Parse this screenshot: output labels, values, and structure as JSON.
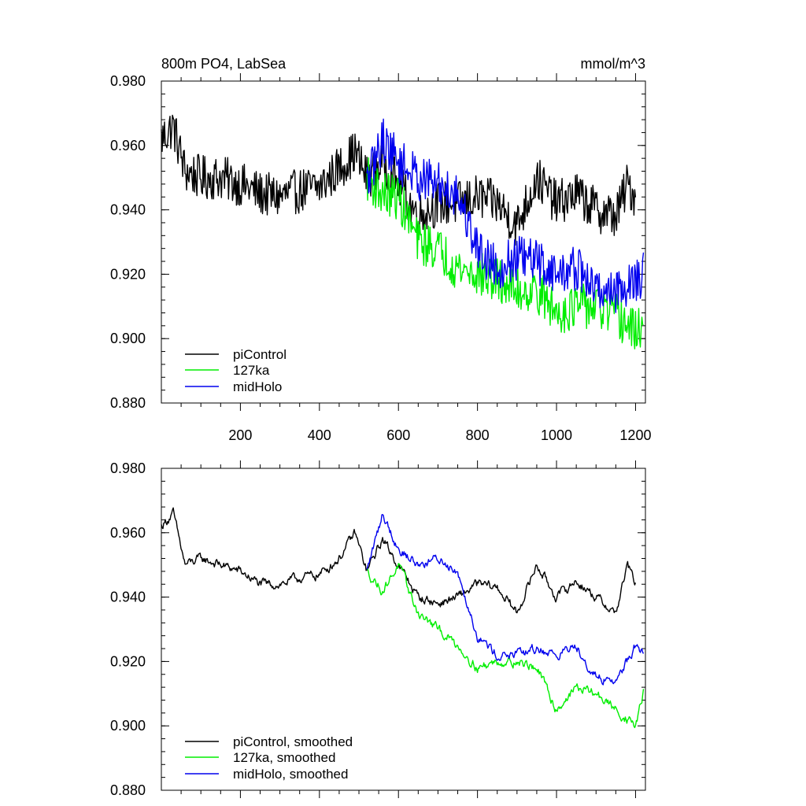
{
  "chart_data": [
    {
      "type": "line",
      "title": "800m PO4, LabSea",
      "units": "mmol/m^3",
      "xlim": [
        0,
        1225
      ],
      "ylim": [
        0.88,
        0.98
      ],
      "x_ticks": [
        200,
        400,
        600,
        800,
        1000,
        1200
      ],
      "x_tick_labels": [
        "200",
        "400",
        "600",
        "800",
        "1000",
        "1200"
      ],
      "y_ticks": [
        0.88,
        0.9,
        0.92,
        0.94,
        0.96,
        0.98
      ],
      "y_tick_labels": [
        "0.880",
        "0.900",
        "0.920",
        "0.940",
        "0.960",
        "0.980"
      ],
      "grid": false,
      "legend_position": "bottom-left",
      "noise": 0.007,
      "series": [
        {
          "name": "piControl",
          "color": "#000000",
          "x_range": [
            0,
            1200
          ],
          "anchors": [
            [
              0,
              0.962
            ],
            [
              30,
              0.966
            ],
            [
              60,
              0.952
            ],
            [
              100,
              0.95
            ],
            [
              150,
              0.95
            ],
            [
              200,
              0.948
            ],
            [
              250,
              0.945
            ],
            [
              300,
              0.944
            ],
            [
              350,
              0.946
            ],
            [
              400,
              0.947
            ],
            [
              450,
              0.953
            ],
            [
              490,
              0.958
            ],
            [
              520,
              0.95
            ],
            [
              560,
              0.955
            ],
            [
              600,
              0.948
            ],
            [
              650,
              0.938
            ],
            [
              700,
              0.942
            ],
            [
              750,
              0.942
            ],
            [
              800,
              0.944
            ],
            [
              850,
              0.942
            ],
            [
              900,
              0.935
            ],
            [
              950,
              0.95
            ],
            [
              1000,
              0.942
            ],
            [
              1050,
              0.945
            ],
            [
              1100,
              0.94
            ],
            [
              1150,
              0.938
            ],
            [
              1180,
              0.948
            ],
            [
              1200,
              0.944
            ]
          ]
        },
        {
          "name": "127ka",
          "color": "#00ee00",
          "x_range": [
            520,
            1220
          ],
          "anchors": [
            [
              520,
              0.95
            ],
            [
              560,
              0.945
            ],
            [
              600,
              0.944
            ],
            [
              650,
              0.93
            ],
            [
              700,
              0.928
            ],
            [
              750,
              0.922
            ],
            [
              800,
              0.92
            ],
            [
              850,
              0.918
            ],
            [
              900,
              0.915
            ],
            [
              950,
              0.915
            ],
            [
              1000,
              0.908
            ],
            [
              1050,
              0.91
            ],
            [
              1100,
              0.91
            ],
            [
              1150,
              0.907
            ],
            [
              1200,
              0.902
            ],
            [
              1220,
              0.905
            ]
          ]
        },
        {
          "name": "midHolo",
          "color": "#0000ee",
          "x_range": [
            520,
            1220
          ],
          "anchors": [
            [
              520,
              0.948
            ],
            [
              560,
              0.962
            ],
            [
              600,
              0.955
            ],
            [
              650,
              0.95
            ],
            [
              700,
              0.948
            ],
            [
              750,
              0.945
            ],
            [
              800,
              0.928
            ],
            [
              850,
              0.922
            ],
            [
              900,
              0.925
            ],
            [
              950,
              0.924
            ],
            [
              1000,
              0.92
            ],
            [
              1050,
              0.922
            ],
            [
              1100,
              0.915
            ],
            [
              1150,
              0.915
            ],
            [
              1200,
              0.918
            ],
            [
              1220,
              0.92
            ]
          ]
        }
      ]
    },
    {
      "type": "line",
      "title": "",
      "units": "",
      "xlim": [
        0,
        1225
      ],
      "ylim": [
        0.88,
        0.98
      ],
      "x_ticks": [
        200,
        400,
        600,
        800,
        1000,
        1200
      ],
      "x_tick_labels": [],
      "y_ticks": [
        0.88,
        0.9,
        0.92,
        0.94,
        0.96,
        0.98
      ],
      "y_tick_labels": [
        "0.880",
        "0.900",
        "0.920",
        "0.940",
        "0.960",
        "0.980"
      ],
      "grid": false,
      "legend_position": "bottom-left",
      "noise": 0.0032,
      "series": [
        {
          "name": "piControl, smoothed",
          "color": "#000000",
          "x_range": [
            0,
            1200
          ],
          "anchors": [
            [
              0,
              0.962
            ],
            [
              30,
              0.966
            ],
            [
              60,
              0.95
            ],
            [
              100,
              0.952
            ],
            [
              150,
              0.95
            ],
            [
              200,
              0.948
            ],
            [
              250,
              0.944
            ],
            [
              300,
              0.944
            ],
            [
              350,
              0.946
            ],
            [
              400,
              0.947
            ],
            [
              450,
              0.952
            ],
            [
              490,
              0.96
            ],
            [
              520,
              0.948
            ],
            [
              560,
              0.958
            ],
            [
              600,
              0.95
            ],
            [
              650,
              0.94
            ],
            [
              700,
              0.938
            ],
            [
              750,
              0.94
            ],
            [
              800,
              0.944
            ],
            [
              850,
              0.943
            ],
            [
              900,
              0.935
            ],
            [
              950,
              0.95
            ],
            [
              1000,
              0.94
            ],
            [
              1050,
              0.945
            ],
            [
              1100,
              0.94
            ],
            [
              1150,
              0.935
            ],
            [
              1180,
              0.95
            ],
            [
              1200,
              0.944
            ]
          ]
        },
        {
          "name": "127ka, smoothed",
          "color": "#00ee00",
          "x_range": [
            520,
            1220
          ],
          "anchors": [
            [
              520,
              0.948
            ],
            [
              560,
              0.942
            ],
            [
              600,
              0.95
            ],
            [
              650,
              0.935
            ],
            [
              700,
              0.93
            ],
            [
              750,
              0.925
            ],
            [
              800,
              0.918
            ],
            [
              850,
              0.92
            ],
            [
              900,
              0.92
            ],
            [
              950,
              0.918
            ],
            [
              1000,
              0.905
            ],
            [
              1050,
              0.912
            ],
            [
              1100,
              0.91
            ],
            [
              1150,
              0.905
            ],
            [
              1200,
              0.9
            ],
            [
              1220,
              0.91
            ]
          ]
        },
        {
          "name": "midHolo, smoothed",
          "color": "#0000ee",
          "x_range": [
            520,
            1220
          ],
          "anchors": [
            [
              520,
              0.948
            ],
            [
              560,
              0.966
            ],
            [
              600,
              0.955
            ],
            [
              650,
              0.95
            ],
            [
              700,
              0.952
            ],
            [
              750,
              0.948
            ],
            [
              800,
              0.928
            ],
            [
              850,
              0.922
            ],
            [
              900,
              0.922
            ],
            [
              950,
              0.924
            ],
            [
              1000,
              0.922
            ],
            [
              1050,
              0.925
            ],
            [
              1100,
              0.915
            ],
            [
              1150,
              0.914
            ],
            [
              1200,
              0.925
            ],
            [
              1220,
              0.922
            ]
          ]
        }
      ]
    }
  ]
}
